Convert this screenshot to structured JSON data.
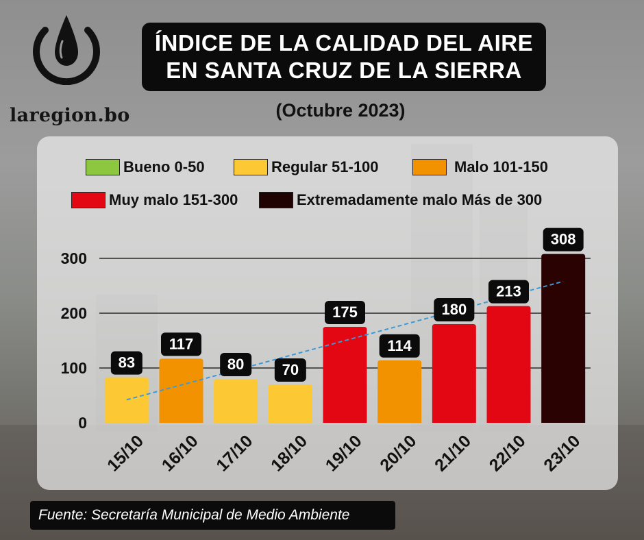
{
  "brand": {
    "name": "laregion.bo"
  },
  "header": {
    "title_line1": "ÍNDICE DE LA CALIDAD DEL AIRE",
    "title_line2": "EN SANTA CRUZ DE LA SIERRA",
    "subtitle": "(Octubre 2023)"
  },
  "legend": [
    {
      "label": "Bueno 0-50",
      "color": "#8dc63f"
    },
    {
      "label": "Regular 51-100",
      "color": "#fcc935"
    },
    {
      "label": "Malo 101-150",
      "color": "#f39200"
    },
    {
      "label": "Muy malo 151-300",
      "color": "#e30613"
    },
    {
      "label": "Extremadamente malo Más de 300",
      "color": "#1f0202"
    }
  ],
  "footer": {
    "source": "Fuente: Secretaría Municipal de Medio Ambiente"
  },
  "chart_data": {
    "type": "bar",
    "categories": [
      "15/10",
      "16/10",
      "17/10",
      "18/10",
      "19/10",
      "20/10",
      "21/10",
      "22/10",
      "23/10"
    ],
    "values": [
      83,
      117,
      80,
      70,
      175,
      114,
      180,
      213,
      308
    ],
    "colors": [
      "#fcc935",
      "#f39200",
      "#fcc935",
      "#fcc935",
      "#e30613",
      "#f39200",
      "#e30613",
      "#e30613",
      "#2a0202"
    ],
    "ylim": [
      0,
      300
    ],
    "yticks": [
      0,
      100,
      200,
      300
    ],
    "grid": true,
    "trendline": {
      "style": "dashed",
      "color": "#3a9ad9",
      "start": 42,
      "end": 258
    },
    "legend_position": "top"
  }
}
